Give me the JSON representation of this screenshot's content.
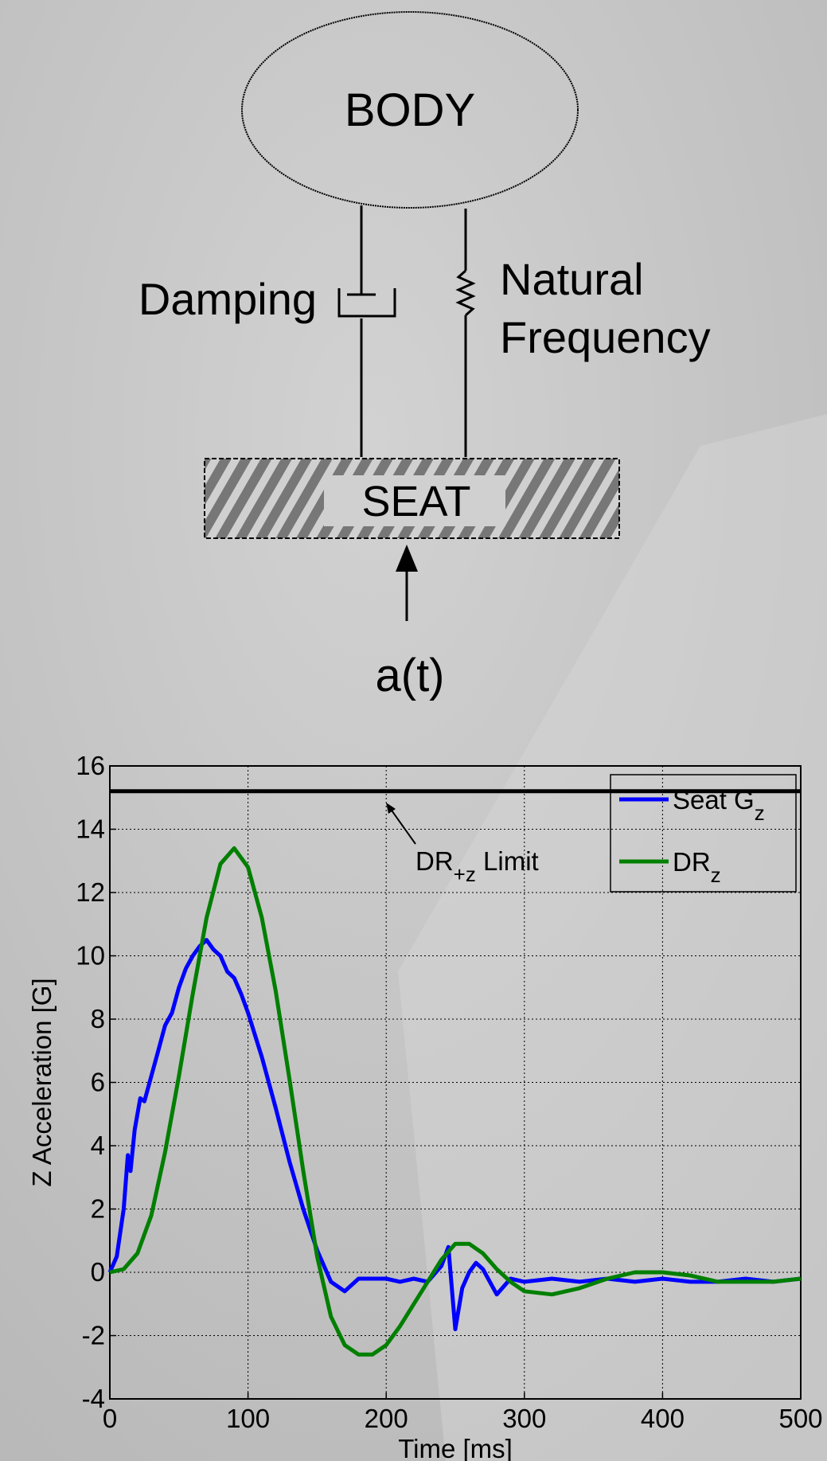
{
  "diagram": {
    "body": "BODY",
    "damping": "Damping",
    "natural": [
      "Natural",
      "Frequency"
    ],
    "seat": "SEAT",
    "input": "a(t)"
  },
  "chart_data": {
    "type": "line",
    "xlabel": "Time [ms]",
    "ylabel": "Z Acceleration [G]",
    "xlim": [
      0,
      500
    ],
    "ylim": [
      -4,
      16
    ],
    "xticks": [
      0,
      100,
      200,
      300,
      400,
      500
    ],
    "yticks": [
      -4,
      -2,
      0,
      2,
      4,
      6,
      8,
      10,
      12,
      14,
      16
    ],
    "grid": true,
    "legend": "upper right",
    "hline": {
      "value": 15.2,
      "color": "#000000",
      "text": "DR",
      "subscript": "+z",
      "suffix": " Limit"
    },
    "series": [
      {
        "name": "Seat G",
        "subscript": "z",
        "color": "#0000ff",
        "x": [
          0,
          5,
          10,
          13,
          15,
          18,
          22,
          25,
          30,
          35,
          40,
          45,
          50,
          55,
          60,
          65,
          70,
          75,
          80,
          85,
          90,
          95,
          100,
          110,
          120,
          130,
          140,
          150,
          160,
          170,
          180,
          190,
          200,
          210,
          220,
          230,
          240,
          245,
          250,
          255,
          260,
          265,
          270,
          280,
          290,
          300,
          320,
          340,
          360,
          380,
          400,
          420,
          440,
          460,
          480,
          500
        ],
        "values": [
          0,
          0.5,
          2,
          3.7,
          3.2,
          4.5,
          5.5,
          5.4,
          6.2,
          7,
          7.8,
          8.2,
          9,
          9.6,
          10,
          10.3,
          10.5,
          10.2,
          10,
          9.5,
          9.3,
          8.8,
          8.2,
          6.8,
          5.2,
          3.5,
          2,
          0.7,
          -0.3,
          -0.6,
          -0.2,
          -0.2,
          -0.2,
          -0.3,
          -0.2,
          -0.3,
          0.2,
          0.8,
          -1.8,
          -0.5,
          0,
          0.3,
          0.1,
          -0.7,
          -0.2,
          -0.3,
          -0.2,
          -0.3,
          -0.2,
          -0.3,
          -0.2,
          -0.3,
          -0.3,
          -0.2,
          -0.3,
          -0.2
        ]
      },
      {
        "name": "DR",
        "subscript": "z",
        "color": "#007f00",
        "x": [
          0,
          10,
          20,
          30,
          40,
          50,
          60,
          70,
          80,
          90,
          100,
          110,
          120,
          130,
          140,
          150,
          160,
          170,
          180,
          190,
          200,
          210,
          220,
          230,
          240,
          250,
          260,
          270,
          280,
          290,
          300,
          320,
          340,
          360,
          380,
          400,
          420,
          440,
          460,
          480,
          500
        ],
        "values": [
          0,
          0.1,
          0.6,
          1.8,
          3.8,
          6.2,
          8.8,
          11.2,
          12.9,
          13.4,
          12.8,
          11.2,
          8.9,
          6.1,
          3.2,
          0.5,
          -1.4,
          -2.3,
          -2.6,
          -2.6,
          -2.3,
          -1.7,
          -1,
          -0.3,
          0.4,
          0.9,
          0.9,
          0.6,
          0.1,
          -0.3,
          -0.6,
          -0.7,
          -0.5,
          -0.2,
          0,
          0,
          -0.1,
          -0.3,
          -0.3,
          -0.3,
          -0.2
        ]
      }
    ]
  }
}
